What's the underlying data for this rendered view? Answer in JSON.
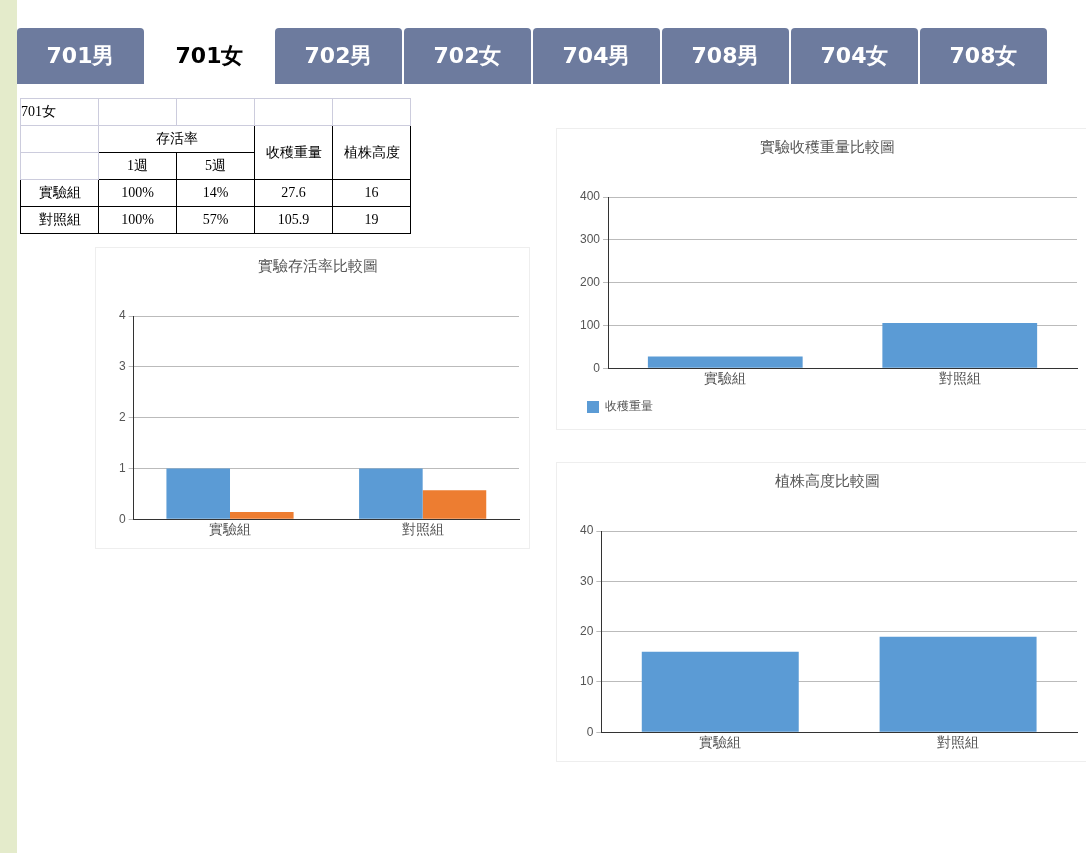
{
  "chart_data": [
    {
      "type": "other",
      "annotations": [
        "701男",
        "701女",
        "702男",
        "702女",
        "704男",
        "708男",
        "704女",
        "708女"
      ]
    },
    {
      "type": "other",
      "annotations": [
        "701女",
        "存活率",
        "收穫重量",
        "植株高度",
        "1週",
        "5週",
        "實驗組",
        "100%",
        "14%",
        "27.6",
        "16",
        "對照組",
        "100%",
        "57%",
        "105.9",
        "19"
      ]
    },
    {
      "type": "bar",
      "title": "實驗存活率比較圖",
      "categories": [
        "實驗組",
        "對照組"
      ],
      "series": [
        {
          "color": "#5b9bd5",
          "values": [
            1,
            1
          ]
        },
        {
          "color": "#ed7d31",
          "values": [
            0.14,
            0.57
          ]
        }
      ],
      "ylim": [
        0,
        4
      ],
      "yticks": [
        0,
        1,
        2,
        3,
        4
      ],
      "grid": "y"
    },
    {
      "type": "bar",
      "title": "實驗收穫重量比較圖",
      "categories": [
        "實驗組",
        "對照組"
      ],
      "series": [
        {
          "name": "收穫重量",
          "color": "#5b9bd5",
          "values": [
            27.6,
            105.9
          ]
        }
      ],
      "ylim": [
        0,
        400
      ],
      "yticks": [
        0,
        100,
        200,
        300,
        400
      ],
      "grid": "y",
      "legend": "bottom"
    },
    {
      "type": "bar",
      "title": "植株高度比較圖",
      "categories": [
        "實驗組",
        "對照組"
      ],
      "color": "#5b9bd5",
      "values": [
        16,
        19
      ],
      "ylim": [
        0,
        40
      ],
      "yticks": [
        0,
        10,
        20,
        30,
        40
      ],
      "grid": "y"
    }
  ]
}
